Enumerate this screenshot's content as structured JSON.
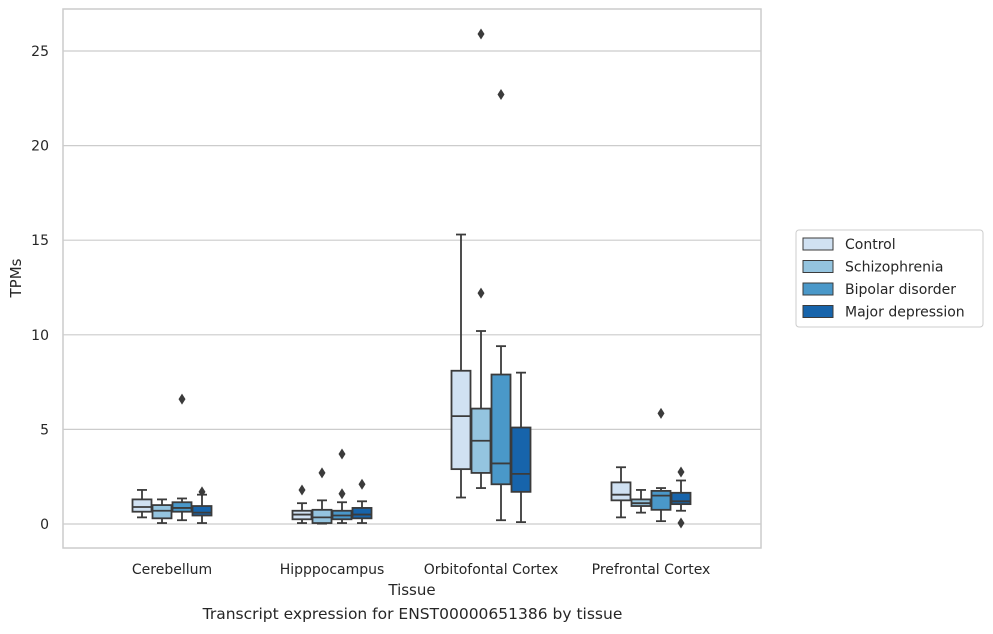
{
  "caption": "Transcript expression for ENST00000651386 by tissue",
  "colors": {
    "Control": "#d0e1f2",
    "Schizophrenia": "#94c4df",
    "Bipolar disorder": "#4a98c9",
    "Major depression": "#1764ab",
    "box_edge": "#3b3b3b",
    "grid": "#cccccc",
    "frame": "#cccccc"
  },
  "chart_data": {
    "type": "box",
    "title": "",
    "xlabel": "Tissue",
    "ylabel": "TPMs",
    "ylim": [
      -1.2,
      27
    ],
    "yticks": [
      0,
      5,
      10,
      15,
      20,
      25
    ],
    "grid": "horizontal",
    "legend_position": "right",
    "categories": [
      "Cerebellum",
      "Hipppocampus",
      "Orbitofontal Cortex",
      "Prefrontal Cortex"
    ],
    "series": [
      {
        "name": "Control",
        "boxes": [
          {
            "whislo": 0.35,
            "q1": 0.65,
            "med": 0.9,
            "q3": 1.3,
            "whishi": 1.8,
            "fliers": []
          },
          {
            "whislo": 0.05,
            "q1": 0.25,
            "med": 0.5,
            "q3": 0.7,
            "whishi": 1.1,
            "fliers": [
              1.8
            ]
          },
          {
            "whislo": 1.4,
            "q1": 2.9,
            "med": 5.7,
            "q3": 8.1,
            "whishi": 15.3,
            "fliers": []
          },
          {
            "whislo": 0.35,
            "q1": 1.25,
            "med": 1.55,
            "q3": 2.2,
            "whishi": 3.0,
            "fliers": []
          }
        ]
      },
      {
        "name": "Schizophrenia",
        "boxes": [
          {
            "whislo": 0.05,
            "q1": 0.3,
            "med": 0.7,
            "q3": 1.0,
            "whishi": 1.3,
            "fliers": []
          },
          {
            "whislo": 0.02,
            "q1": 0.05,
            "med": 0.35,
            "q3": 0.75,
            "whishi": 1.25,
            "fliers": [
              2.7
            ]
          },
          {
            "whislo": 1.9,
            "q1": 2.7,
            "med": 4.4,
            "q3": 6.1,
            "whishi": 10.2,
            "fliers": [
              12.2,
              25.9
            ]
          },
          {
            "whislo": 0.6,
            "q1": 0.95,
            "med": 1.1,
            "q3": 1.3,
            "whishi": 1.8,
            "fliers": []
          }
        ]
      },
      {
        "name": "Bipolar disorder",
        "boxes": [
          {
            "whislo": 0.2,
            "q1": 0.65,
            "med": 0.85,
            "q3": 1.15,
            "whishi": 1.35,
            "fliers": [
              6.6
            ]
          },
          {
            "whislo": 0.05,
            "q1": 0.25,
            "med": 0.45,
            "q3": 0.7,
            "whishi": 1.15,
            "fliers": [
              1.6,
              3.7
            ]
          },
          {
            "whislo": 0.2,
            "q1": 2.1,
            "med": 3.2,
            "q3": 7.9,
            "whishi": 9.4,
            "fliers": [
              22.7
            ]
          },
          {
            "whislo": 0.15,
            "q1": 0.75,
            "med": 1.5,
            "q3": 1.75,
            "whishi": 1.9,
            "fliers": [
              5.85
            ]
          }
        ]
      },
      {
        "name": "Major depression",
        "boxes": [
          {
            "whislo": 0.05,
            "q1": 0.45,
            "med": 0.6,
            "q3": 0.95,
            "whishi": 1.55,
            "fliers": [
              1.7
            ]
          },
          {
            "whislo": 0.05,
            "q1": 0.3,
            "med": 0.5,
            "q3": 0.85,
            "whishi": 1.2,
            "fliers": [
              2.1
            ]
          },
          {
            "whislo": 0.1,
            "q1": 1.7,
            "med": 2.65,
            "q3": 5.1,
            "whishi": 8.0,
            "fliers": []
          },
          {
            "whislo": 0.7,
            "q1": 1.05,
            "med": 1.2,
            "q3": 1.65,
            "whishi": 2.3,
            "fliers": [
              0.05,
              2.75
            ]
          }
        ]
      }
    ]
  }
}
